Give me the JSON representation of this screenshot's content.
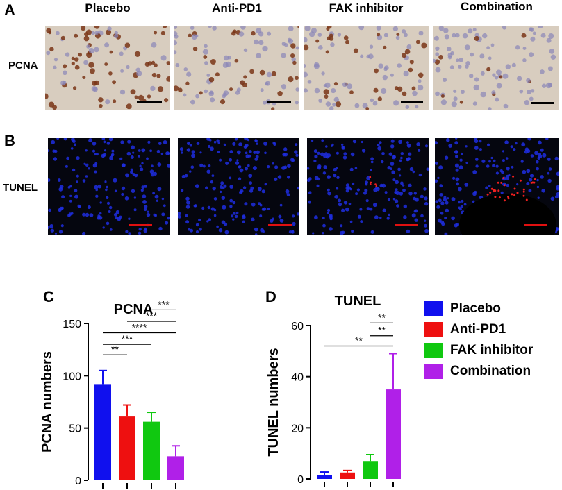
{
  "panel_labels": {
    "A": "A",
    "B": "B",
    "C": "C",
    "D": "D"
  },
  "groups": [
    "Placebo",
    "Anti-PD1",
    "FAK inhibitor",
    "Combination"
  ],
  "row_labels": {
    "pcna": "PCNA",
    "tunel": "TUNEL"
  },
  "colors": {
    "Placebo": "#1010ee",
    "Anti-PD1": "#ee1010",
    "FAK inhibitor": "#10c810",
    "Combination": "#b020e8",
    "scalebar_ihc": "#000000",
    "scalebar_tunel": "#e01010"
  },
  "chart_data": [
    {
      "panel": "C",
      "type": "bar",
      "title": "PCNA",
      "ylabel": "PCNA numbers",
      "xlabel": "",
      "ylim": [
        0,
        150
      ],
      "yticks": [
        0,
        50,
        100,
        150
      ],
      "categories": [
        "Placebo",
        "Anti-PD1",
        "FAK inhibitor",
        "Combination"
      ],
      "values": [
        92,
        61,
        56,
        23
      ],
      "errors": [
        13,
        11,
        9,
        10
      ],
      "significance": [
        {
          "from": 0,
          "to": 1,
          "label": "**",
          "y": 120
        },
        {
          "from": 0,
          "to": 2,
          "label": "***",
          "y": 130
        },
        {
          "from": 0,
          "to": 3,
          "label": "****",
          "y": 141
        },
        {
          "from": 1,
          "to": 3,
          "label": "***",
          "y": 152
        },
        {
          "from": 2,
          "to": 3,
          "label": "***",
          "y": 163
        }
      ]
    },
    {
      "panel": "D",
      "type": "bar",
      "title": "TUNEL",
      "ylabel": "TUNEL numbers",
      "xlabel": "",
      "ylim": [
        0,
        60
      ],
      "yticks": [
        0,
        20,
        40,
        60
      ],
      "categories": [
        "Placebo",
        "Anti-PD1",
        "FAK inhibitor",
        "Combination"
      ],
      "values": [
        1.5,
        2.5,
        7,
        35
      ],
      "errors": [
        1.2,
        0.8,
        2.5,
        14
      ],
      "significance": [
        {
          "from": 0,
          "to": 3,
          "label": "**",
          "y": 52
        },
        {
          "from": 2,
          "to": 3,
          "label": "**",
          "y": 56
        },
        {
          "from": 2,
          "to": 3,
          "label": "**",
          "y": 61
        }
      ]
    }
  ]
}
